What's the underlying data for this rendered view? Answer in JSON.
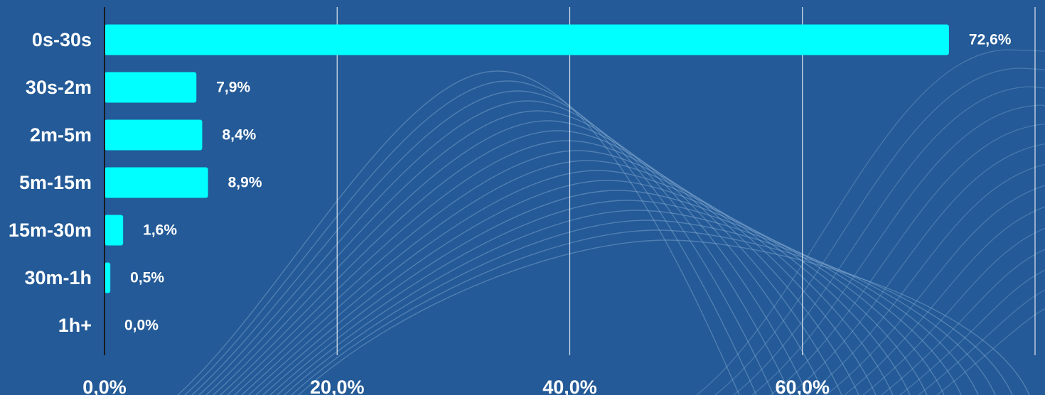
{
  "chart_data": {
    "type": "bar",
    "orientation": "horizontal",
    "categories": [
      "0s-30s",
      "30s-2m",
      "2m-5m",
      "5m-15m",
      "15m-30m",
      "30m-1h",
      "1h+"
    ],
    "values": [
      72.6,
      7.9,
      8.4,
      8.9,
      1.6,
      0.5,
      0.0
    ],
    "value_labels": [
      "72,6%",
      "7,9%",
      "8,4%",
      "8,9%",
      "1,6%",
      "0,5%",
      "0,0%"
    ],
    "x_ticks": [
      0,
      20,
      40,
      60,
      80
    ],
    "x_tick_labels": [
      "0,0%",
      "20,0%",
      "40,0%",
      "60,0%",
      ""
    ],
    "xlim": [
      0,
      80
    ],
    "title": "",
    "xlabel": "",
    "ylabel": "",
    "grid": "vertical",
    "legend": "none",
    "colors": {
      "background": "#235a97",
      "bar": "#00ffff",
      "gridline": "#dfe7f2",
      "axis": "#1b1b1b",
      "text": "#ffffff",
      "decorative_lines": "#8fb2d8"
    }
  }
}
